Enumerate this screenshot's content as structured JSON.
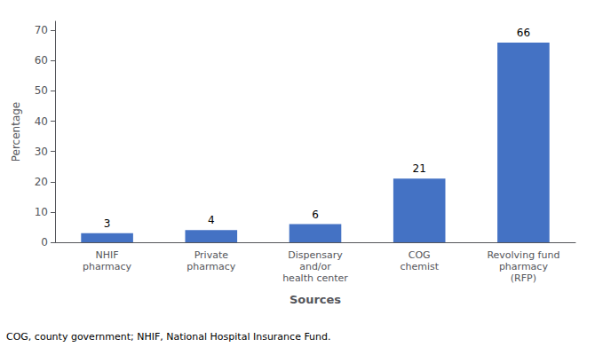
{
  "chart_data": {
    "type": "bar",
    "categories": [
      "NHIF\npharmacy",
      "Private\npharmacy",
      "Dispensary\nand/or\nhealth center",
      "COG\nchemist",
      "Revolving fund\npharmacy\n(RFP)"
    ],
    "values": [
      3,
      4,
      6,
      21,
      66
    ],
    "color": "#4472C4",
    "xlabel": "Sources",
    "ylabel": "Percentage",
    "ylim": [
      0,
      73
    ],
    "yticks": [
      0,
      10,
      20,
      30,
      40,
      50,
      60,
      70
    ],
    "grid": false,
    "data_labels": true,
    "annotations": [
      "COG, county government; NHIF, National Hospital Insurance Fund."
    ]
  }
}
